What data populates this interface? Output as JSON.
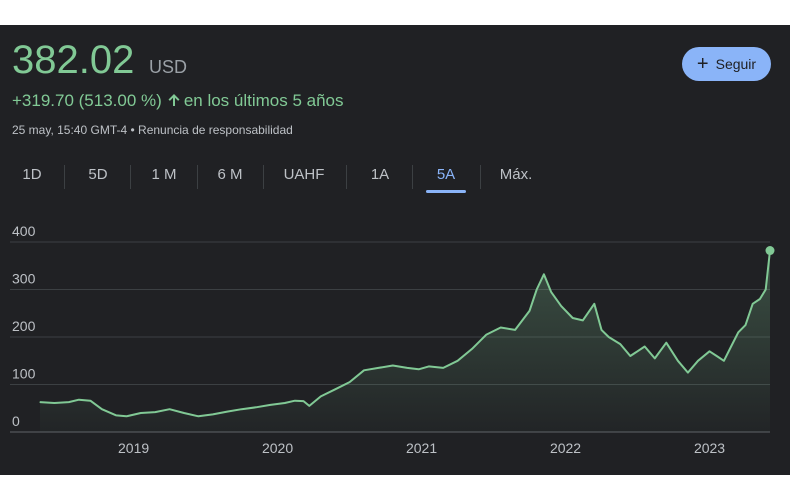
{
  "header": {
    "price": "382.02",
    "currency": "USD",
    "change_text": "+319.70 (513.00 %)",
    "period_text": "en los últimos 5 años",
    "disclaimer": "25 may, 15:40 GMT-4 • Renuncia de responsabilidad",
    "follow_label": "Seguir",
    "accent_color": "#81c995",
    "button_color": "#8ab4f8"
  },
  "tabs": [
    {
      "label": "1D"
    },
    {
      "label": "5D"
    },
    {
      "label": "1 M"
    },
    {
      "label": "6 M"
    },
    {
      "label": "UAHF"
    },
    {
      "label": "1A"
    },
    {
      "label": "5A",
      "active": true
    },
    {
      "label": "Máx."
    }
  ],
  "chart_data": {
    "type": "area",
    "ylim": [
      0,
      400
    ],
    "yticks": [
      0,
      100,
      200,
      300,
      400
    ],
    "xlim": [
      2018.35,
      2023.42
    ],
    "xticks": [
      {
        "label": "2019",
        "value": 2019
      },
      {
        "label": "2020",
        "value": 2020
      },
      {
        "label": "2021",
        "value": 2021
      },
      {
        "label": "2022",
        "value": 2022
      },
      {
        "label": "2023",
        "value": 2023
      }
    ],
    "grid": true,
    "line_color": "#81c995",
    "x": [
      2018.35,
      2018.45,
      2018.55,
      2018.62,
      2018.7,
      2018.78,
      2018.88,
      2018.95,
      2019.05,
      2019.15,
      2019.25,
      2019.35,
      2019.45,
      2019.55,
      2019.65,
      2019.75,
      2019.85,
      2019.95,
      2020.05,
      2020.12,
      2020.18,
      2020.22,
      2020.3,
      2020.4,
      2020.5,
      2020.6,
      2020.7,
      2020.8,
      2020.9,
      2020.98,
      2021.05,
      2021.15,
      2021.25,
      2021.35,
      2021.45,
      2021.55,
      2021.65,
      2021.75,
      2021.8,
      2021.85,
      2021.9,
      2021.97,
      2022.05,
      2022.12,
      2022.2,
      2022.25,
      2022.3,
      2022.38,
      2022.45,
      2022.55,
      2022.62,
      2022.7,
      2022.78,
      2022.85,
      2022.92,
      2023.0,
      2023.05,
      2023.1,
      2023.15,
      2023.2,
      2023.25,
      2023.3,
      2023.35,
      2023.39,
      2023.42
    ],
    "values": [
      63,
      61,
      63,
      68,
      66,
      48,
      35,
      33,
      40,
      42,
      48,
      40,
      33,
      37,
      43,
      48,
      52,
      57,
      61,
      66,
      65,
      55,
      75,
      90,
      105,
      130,
      135,
      140,
      135,
      132,
      138,
      135,
      150,
      175,
      205,
      220,
      215,
      255,
      300,
      332,
      295,
      265,
      240,
      235,
      270,
      215,
      200,
      185,
      160,
      180,
      155,
      188,
      150,
      125,
      150,
      170,
      160,
      150,
      180,
      210,
      225,
      270,
      280,
      300,
      382
    ]
  }
}
